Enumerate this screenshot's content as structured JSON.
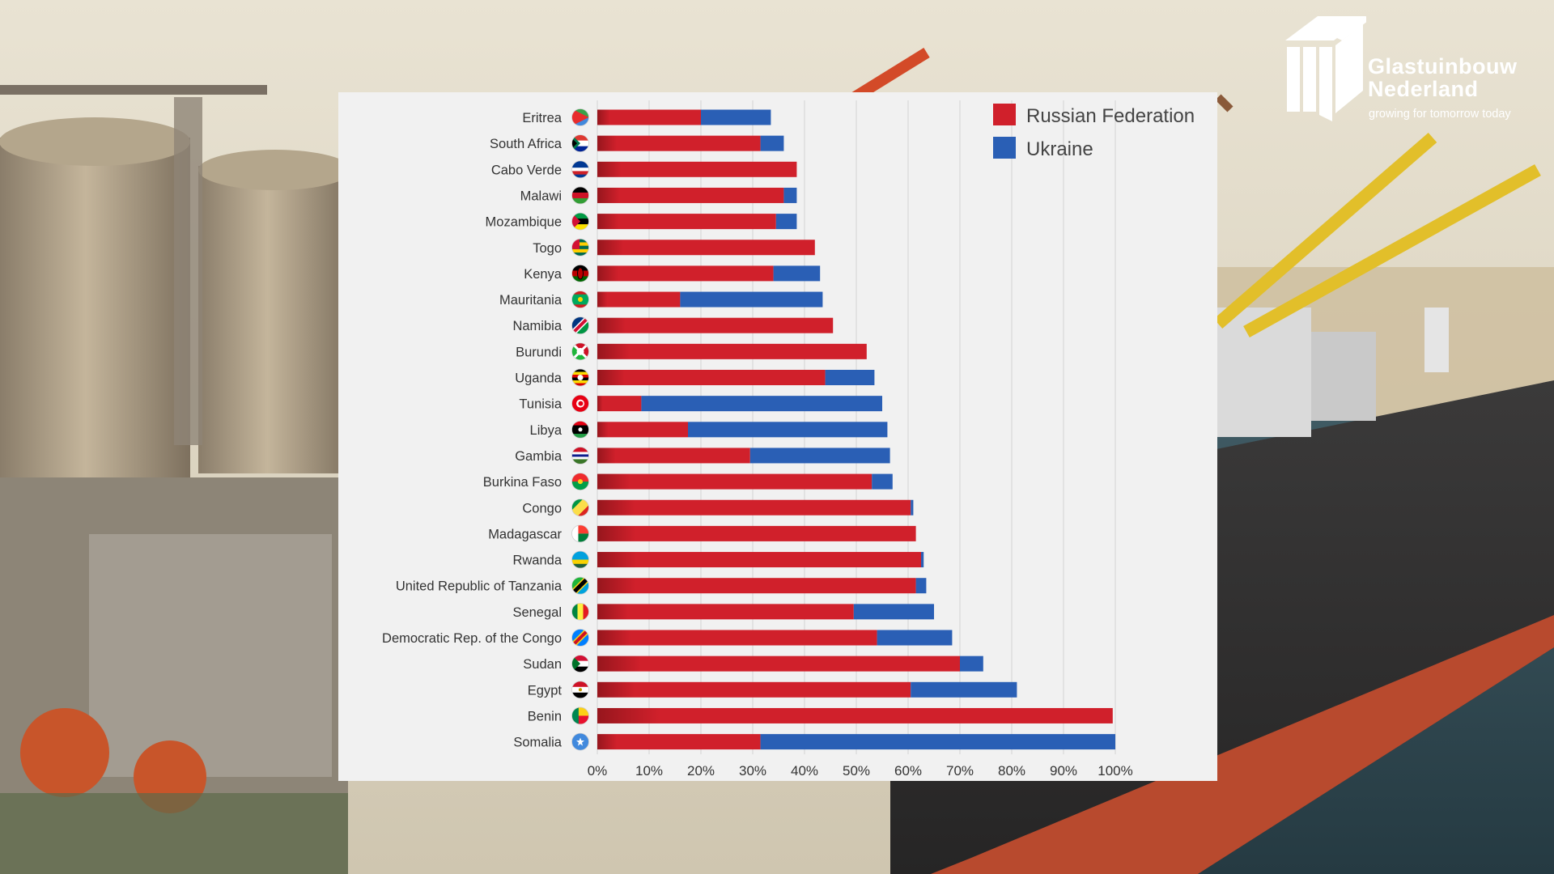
{
  "logo": {
    "name_line1": "Glastuinbouw",
    "name_line2": "Nederland",
    "tagline": "growing for tomorrow today",
    "icon": "greenhouse-logo-icon"
  },
  "colors": {
    "russia": "#d0202b",
    "ukraine": "#2a5fb5",
    "panel": "#f1f1f1",
    "text": "#333333"
  },
  "chart_data": {
    "type": "bar",
    "orientation": "horizontal",
    "stacked": true,
    "categories": [
      "Eritrea",
      "South Africa",
      "Cabo Verde",
      "Malawi",
      "Mozambique",
      "Togo",
      "Kenya",
      "Mauritania",
      "Namibia",
      "Burundi",
      "Uganda",
      "Tunisia",
      "Libya",
      "Gambia",
      "Burkina Faso",
      "Congo",
      "Madagascar",
      "Rwanda",
      "United Republic of Tanzania",
      "Senegal",
      "Democratic Rep. of the Congo",
      "Sudan",
      "Egypt",
      "Benin",
      "Somalia"
    ],
    "series": [
      {
        "name": "Russian Federation",
        "color": "#d0202b",
        "values": [
          20,
          31.5,
          38.5,
          36,
          34.5,
          42,
          34,
          16,
          45.5,
          52,
          44,
          8.5,
          17.5,
          29.5,
          53,
          60.5,
          61.5,
          62.5,
          61.5,
          49.5,
          54,
          70,
          60.5,
          99.5,
          31.5
        ]
      },
      {
        "name": "Ukraine",
        "color": "#2a5fb5",
        "values": [
          13.5,
          4.5,
          0,
          2.5,
          4,
          0,
          9,
          27.5,
          0,
          0,
          9.5,
          46.5,
          38.5,
          27,
          4,
          0.5,
          0,
          0.5,
          2,
          15.5,
          14.5,
          4.5,
          20.5,
          0,
          68.5
        ]
      }
    ],
    "flags": [
      "eritrea-flag-icon",
      "south-africa-flag-icon",
      "cabo-verde-flag-icon",
      "malawi-flag-icon",
      "mozambique-flag-icon",
      "togo-flag-icon",
      "kenya-flag-icon",
      "mauritania-flag-icon",
      "namibia-flag-icon",
      "burundi-flag-icon",
      "uganda-flag-icon",
      "tunisia-flag-icon",
      "libya-flag-icon",
      "gambia-flag-icon",
      "burkina-faso-flag-icon",
      "congo-flag-icon",
      "madagascar-flag-icon",
      "rwanda-flag-icon",
      "tanzania-flag-icon",
      "senegal-flag-icon",
      "dr-congo-flag-icon",
      "sudan-flag-icon",
      "egypt-flag-icon",
      "benin-flag-icon",
      "somalia-flag-icon"
    ],
    "x_ticks": [
      "0%",
      "10%",
      "20%",
      "30%",
      "40%",
      "50%",
      "60%",
      "70%",
      "80%",
      "90%",
      "100%"
    ],
    "xlim": [
      0,
      100
    ],
    "grid": true,
    "legend": {
      "position": "top-right",
      "entries": [
        "Russian Federation",
        "Ukraine"
      ]
    },
    "title": "",
    "xlabel": "",
    "ylabel": ""
  }
}
